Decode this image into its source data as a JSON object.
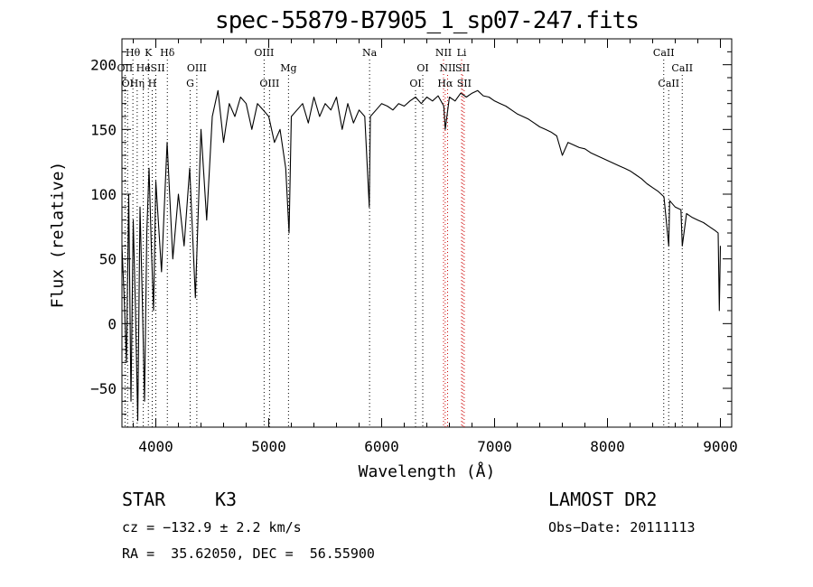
{
  "chart_data": {
    "type": "line",
    "title": "spec-55879-B7905_1_sp07-247.fits",
    "xlabel": "Wavelength (Å)",
    "ylabel": "Flux (relative)",
    "xlim": [
      3700,
      9100
    ],
    "ylim": [
      -80,
      220
    ],
    "xticks": [
      4000,
      5000,
      6000,
      7000,
      8000,
      9000
    ],
    "yticks": [
      -50,
      0,
      50,
      100,
      150,
      200
    ],
    "grid": false,
    "series": [
      {
        "color": "#000000",
        "x": [
          3700,
          3720,
          3740,
          3760,
          3780,
          3800,
          3820,
          3840,
          3860,
          3880,
          3900,
          3920,
          3940,
          3960,
          3980,
          4000,
          4050,
          4100,
          4150,
          4200,
          4250,
          4300,
          4350,
          4400,
          4450,
          4500,
          4550,
          4600,
          4650,
          4700,
          4750,
          4800,
          4850,
          4900,
          4950,
          5000,
          5050,
          5100,
          5150,
          5180,
          5200,
          5250,
          5300,
          5350,
          5400,
          5450,
          5500,
          5550,
          5600,
          5650,
          5700,
          5750,
          5800,
          5850,
          5890,
          5900,
          5950,
          6000,
          6050,
          6100,
          6150,
          6200,
          6250,
          6300,
          6350,
          6400,
          6450,
          6500,
          6550,
          6563,
          6600,
          6650,
          6700,
          6750,
          6800,
          6850,
          6900,
          6950,
          7000,
          7050,
          7100,
          7150,
          7200,
          7250,
          7300,
          7350,
          7400,
          7450,
          7500,
          7550,
          7600,
          7650,
          7700,
          7750,
          7800,
          7850,
          7900,
          7950,
          8000,
          8050,
          8100,
          8150,
          8200,
          8250,
          8300,
          8350,
          8400,
          8450,
          8500,
          8542,
          8550,
          8600,
          8650,
          8662,
          8700,
          8750,
          8800,
          8850,
          8900,
          8950,
          8980,
          8990,
          9000
        ],
        "y": [
          60,
          20,
          -30,
          100,
          -60,
          80,
          10,
          -75,
          90,
          20,
          -60,
          70,
          120,
          60,
          10,
          110,
          40,
          140,
          50,
          100,
          60,
          120,
          20,
          150,
          80,
          160,
          180,
          140,
          170,
          160,
          175,
          170,
          150,
          170,
          165,
          160,
          140,
          150,
          120,
          70,
          160,
          165,
          170,
          155,
          175,
          160,
          170,
          165,
          175,
          150,
          170,
          155,
          165,
          160,
          90,
          160,
          165,
          170,
          168,
          165,
          170,
          168,
          172,
          175,
          170,
          175,
          172,
          176,
          168,
          150,
          175,
          172,
          178,
          175,
          178,
          180,
          176,
          175,
          172,
          170,
          168,
          165,
          162,
          160,
          158,
          155,
          152,
          150,
          148,
          145,
          130,
          140,
          138,
          136,
          135,
          132,
          130,
          128,
          126,
          124,
          122,
          120,
          118,
          115,
          112,
          108,
          105,
          102,
          98,
          60,
          95,
          90,
          88,
          60,
          85,
          82,
          80,
          78,
          75,
          72,
          70,
          10,
          60
        ]
      }
    ],
    "line_markers": [
      {
        "label": "Hθ",
        "x": 3797,
        "row": 1,
        "color": "#000000"
      },
      {
        "label": "K",
        "x": 3934,
        "row": 1,
        "color": "#000000"
      },
      {
        "label": "Hδ",
        "x": 4102,
        "row": 1,
        "color": "#000000"
      },
      {
        "label": "OIII",
        "x": 4959,
        "row": 1,
        "color": "#000000"
      },
      {
        "label": "Na",
        "x": 5893,
        "row": 1,
        "color": "#000000"
      },
      {
        "label": "NII",
        "x": 6548,
        "row": 1,
        "color": "#cc0000"
      },
      {
        "label": "Li",
        "x": 6708,
        "row": 1,
        "color": "#cc0000"
      },
      {
        "label": "CaII",
        "x": 8498,
        "row": 1,
        "color": "#000000"
      },
      {
        "label": "OII",
        "x": 3727,
        "row": 2,
        "color": "#000000"
      },
      {
        "label": "He",
        "x": 3889,
        "row": 2,
        "color": "#000000"
      },
      {
        "label": "ISII",
        "x": 4000,
        "row": 2,
        "color": "#000000"
      },
      {
        "label": "OIII",
        "x": 4363,
        "row": 2,
        "color": "#000000"
      },
      {
        "label": "Mg",
        "x": 5175,
        "row": 2,
        "color": "#000000"
      },
      {
        "label": "OI",
        "x": 6364,
        "row": 2,
        "color": "#000000"
      },
      {
        "label": "NII",
        "x": 6584,
        "row": 2,
        "color": "#cc0000"
      },
      {
        "label": "SII",
        "x": 6717,
        "row": 2,
        "color": "#cc0000"
      },
      {
        "label": "CaII",
        "x": 8662,
        "row": 2,
        "color": "#000000"
      },
      {
        "label": "OI",
        "x": 3750,
        "row": 3,
        "color": "#000000"
      },
      {
        "label": "Hη",
        "x": 3835,
        "row": 3,
        "color": "#000000"
      },
      {
        "label": "H",
        "x": 3968,
        "row": 3,
        "color": "#000000"
      },
      {
        "label": "G",
        "x": 4304,
        "row": 3,
        "color": "#000000"
      },
      {
        "label": "OIII",
        "x": 5007,
        "row": 3,
        "color": "#000000"
      },
      {
        "label": "OI",
        "x": 6300,
        "row": 3,
        "color": "#000000"
      },
      {
        "label": "Hα",
        "x": 6563,
        "row": 3,
        "color": "#cc0000"
      },
      {
        "label": "SII",
        "x": 6731,
        "row": 3,
        "color": "#cc0000"
      },
      {
        "label": "CaII",
        "x": 8542,
        "row": 3,
        "color": "#000000"
      }
    ]
  },
  "info": {
    "object_class": "STAR",
    "subclass": "K3",
    "survey": "LAMOST DR2",
    "cz": "cz = −132.9 ± 2.2 km/s",
    "obs_date": "Obs−Date: 20111113",
    "coords": "RA =  35.62050, DEC =  56.55900"
  }
}
